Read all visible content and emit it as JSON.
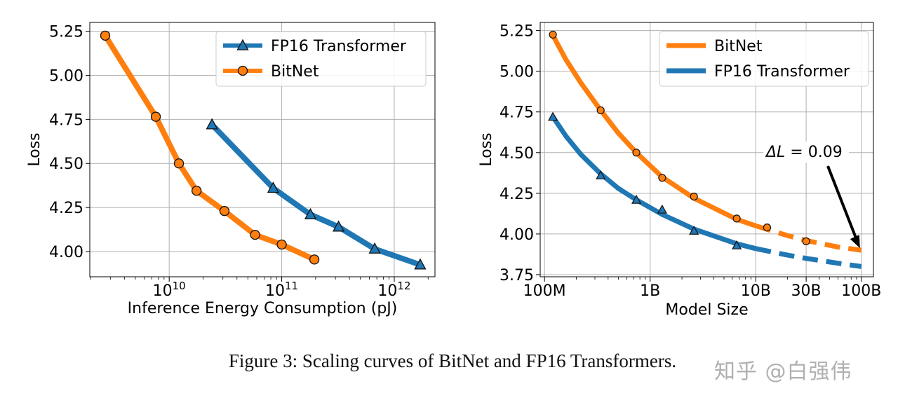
{
  "chart_data": [
    {
      "type": "line",
      "xlabel": "Inference Energy Consumption (pJ)",
      "ylabel": "Loss",
      "xscale": "log",
      "xlim": [
        1970000000.0,
        2300000000000.0
      ],
      "ylim": [
        3.857,
        5.3
      ],
      "grid": true,
      "legend_position": "top-right",
      "x_ticks": [
        {
          "value": 10000000000.0,
          "base": "10",
          "exp": "10"
        },
        {
          "value": 100000000000.0,
          "base": "10",
          "exp": "11"
        },
        {
          "value": 1000000000000.0,
          "base": "10",
          "exp": "12"
        }
      ],
      "y_ticks": [
        "3.75",
        "4.00",
        "4.25",
        "4.50",
        "4.75",
        "5.00",
        "5.25"
      ],
      "series": [
        {
          "name": "FP16 Transformer",
          "color": "#1f77b4",
          "marker": "triangle",
          "x": [
            24000000000.0,
            84000000000.0,
            180000000000.0,
            320000000000.0,
            670000000000.0,
            1700000000000.0
          ],
          "y": [
            4.72,
            4.36,
            4.21,
            4.14,
            4.015,
            3.925
          ]
        },
        {
          "name": "BitNet",
          "color": "#ff7f0e",
          "marker": "circle",
          "x": [
            2700000000.0,
            7600000000.0,
            12200000000.0,
            17500000000.0,
            31000000000.0,
            58000000000.0,
            100000000000.0,
            195000000000.0
          ],
          "y": [
            5.225,
            4.765,
            4.5,
            4.345,
            4.23,
            4.095,
            4.04,
            3.955
          ]
        }
      ]
    },
    {
      "type": "line",
      "xlabel": "Model Size",
      "ylabel": "Loss",
      "xscale": "log",
      "xlim": [
        91000000.0,
        130000000000.0
      ],
      "ylim": [
        3.737,
        5.3
      ],
      "grid": true,
      "legend_position": "top-right",
      "x_ticks": [
        {
          "value": 100000000.0,
          "label": "100M"
        },
        {
          "value": 1000000000.0,
          "label": "1B"
        },
        {
          "value": 10000000000.0,
          "label": "10B"
        },
        {
          "value": 30000000000.0,
          "label": "30B"
        },
        {
          "value": 100000000000.0,
          "label": "100B"
        }
      ],
      "y_ticks": [
        "3.75",
        "4.00",
        "4.25",
        "4.50",
        "4.75",
        "5.00",
        "5.25"
      ],
      "annotation": {
        "text_prefix": "ΔL",
        "text_suffix": " = 0.09",
        "arrow_to": [
          100000000000.0,
          3.9
        ]
      },
      "series": [
        {
          "name": "BitNet",
          "color": "#ff7f0e",
          "marker": "circle",
          "points_x": [
            120000000.0,
            340000000.0,
            740000000.0,
            1300000000.0,
            2600000000.0,
            6600000000.0,
            12800000000.0,
            30000000000.0
          ],
          "points_y": [
            5.225,
            4.76,
            4.5,
            4.345,
            4.23,
            4.095,
            4.04,
            3.955
          ],
          "fit_x": [
            120000000.0,
            160000000.0,
            220000000.0,
            340000000.0,
            500000000.0,
            740000000.0,
            1300000000.0,
            2600000000.0,
            6600000000.0,
            10000000000.0,
            20000000000.0,
            30000000000.0,
            60000000000.0,
            100000000000.0
          ],
          "fit_y": [
            5.22,
            5.07,
            4.93,
            4.76,
            4.62,
            4.5,
            4.35,
            4.22,
            4.09,
            4.05,
            3.99,
            3.96,
            3.92,
            3.9
          ],
          "extrapolated_from": 10000000000.0
        },
        {
          "name": "FP16 Transformer",
          "color": "#1f77b4",
          "marker": "triangle",
          "points_x": [
            120000000.0,
            340000000.0,
            740000000.0,
            1300000000.0,
            2600000000.0,
            6600000000.0
          ],
          "points_y": [
            4.72,
            4.36,
            4.21,
            4.15,
            4.02,
            3.93
          ],
          "fit_x": [
            120000000.0,
            160000000.0,
            220000000.0,
            340000000.0,
            500000000.0,
            740000000.0,
            1300000000.0,
            2600000000.0,
            6600000000.0,
            10000000000.0,
            20000000000.0,
            30000000000.0,
            60000000000.0,
            100000000000.0
          ],
          "fit_y": [
            4.72,
            4.6,
            4.49,
            4.37,
            4.28,
            4.21,
            4.12,
            4.03,
            3.94,
            3.91,
            3.87,
            3.85,
            3.82,
            3.8
          ],
          "extrapolated_from": 10000000000.0
        }
      ]
    }
  ],
  "caption": "Figure 3: Scaling curves of BitNet and FP16 Transformers.",
  "watermark": "知乎 @白强伟"
}
